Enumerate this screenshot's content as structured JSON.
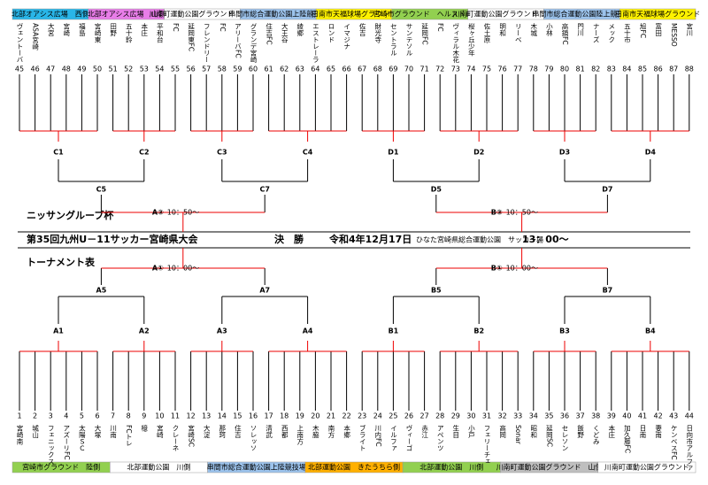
{
  "header": {
    "title": "第35回九州U－11サッカー宮崎県大会",
    "cup": "ニッサングループ杯",
    "subtitle": "トーナメント表",
    "final_label": "決　勝",
    "date": "令和4年12月17日",
    "venue": "ひなた宮崎県総合運動公園　サッカー場",
    "time": "13：00～"
  },
  "top_venues": [
    {
      "label": "北部オアシス広場　西側",
      "color": "#29b6e8"
    },
    {
      "label": "北部オアシス広場　山側",
      "color": "#e87de8"
    },
    {
      "label": "川南町運動公園グラウンド　陸側",
      "color": "#ffffff"
    },
    {
      "label": "串間市総合運動公園上陸競技場",
      "color": "#9cc3ec"
    },
    {
      "label": "日南市天福球場グラウンド",
      "color": "#fff200"
    },
    {
      "label": "宮崎市グラウンド　ヘルストピア側",
      "color": "#92d050"
    },
    {
      "label": "川南町運動公園グラウンド　陸側",
      "color": "#ffffff"
    },
    {
      "label": "串間市総合運動公園陸上競技場",
      "color": "#9cc3ec"
    },
    {
      "label": "日南市天福球場グラウンド",
      "color": "#fff200"
    }
  ],
  "bottom_venues": [
    {
      "label": "宮崎市グラウンド　陸側",
      "color": "#92d050"
    },
    {
      "label": "北部運動公園　川側",
      "color": "#ffffff"
    },
    {
      "label": "串間市総合運動公園上陸競技場",
      "color": "#9cc3ec"
    },
    {
      "label": "北部運動公園　きたうちら側",
      "color": "#ffb000"
    },
    {
      "label": "北部運動公園　川側",
      "color": "#92d050"
    },
    {
      "label": "川南町運動公園グラウンド　山側",
      "color": "#bfbfbf"
    },
    {
      "label": "川南町運動公園グラウンド",
      "color": "#ffffff"
    }
  ],
  "top": {
    "teams": [
      {
        "no": "45",
        "name": "ヴェントーバ"
      },
      {
        "no": "46",
        "name": "ASA宮崎"
      },
      {
        "no": "47",
        "name": "大宮"
      },
      {
        "no": "48",
        "name": "宮崎"
      },
      {
        "no": "49",
        "name": "福島"
      },
      {
        "no": "50",
        "name": "宮崎東"
      },
      {
        "no": "51",
        "name": "田野"
      },
      {
        "no": "52",
        "name": "五十鈴"
      },
      {
        "no": "53",
        "name": "本庄"
      },
      {
        "no": "54",
        "name": "平和台"
      },
      {
        "no": "55",
        "name": "FC"
      },
      {
        "no": "56",
        "name": "延岡東FC"
      },
      {
        "no": "57",
        "name": "フレンドリー"
      },
      {
        "no": "58",
        "name": "FC"
      },
      {
        "no": "59",
        "name": "アリーバFC"
      },
      {
        "no": "60",
        "name": "グランデ宮崎"
      },
      {
        "no": "61",
        "name": "住吉FC"
      },
      {
        "no": "62",
        "name": "大王谷"
      },
      {
        "no": "63",
        "name": "綾郷"
      },
      {
        "no": "64",
        "name": "エストレーラ"
      },
      {
        "no": "65",
        "name": "ロンド"
      },
      {
        "no": "66",
        "name": "イマジナ"
      },
      {
        "no": "67",
        "name": "佐吉"
      },
      {
        "no": "68",
        "name": "財光寺"
      },
      {
        "no": "69",
        "name": "セントラル"
      },
      {
        "no": "70",
        "name": "サンテソル"
      },
      {
        "no": "71",
        "name": "延岡FC"
      },
      {
        "no": "72",
        "name": "FC"
      },
      {
        "no": "73",
        "name": "ヴィラル木花"
      },
      {
        "no": "74",
        "name": "桜ヶ丘少年"
      },
      {
        "no": "75",
        "name": "佐土原"
      },
      {
        "no": "76",
        "name": "明和"
      },
      {
        "no": "77",
        "name": "リーベ"
      },
      {
        "no": "78",
        "name": "木城"
      },
      {
        "no": "79",
        "name": "小林"
      },
      {
        "no": "80",
        "name": "高鍋FC"
      },
      {
        "no": "81",
        "name": "門川"
      },
      {
        "no": "82",
        "name": "ナーズ"
      },
      {
        "no": "83",
        "name": "メック"
      },
      {
        "no": "84",
        "name": "五十市"
      },
      {
        "no": "85",
        "name": "旭FC"
      },
      {
        "no": "86",
        "name": "富田"
      },
      {
        "no": "87",
        "name": "MESSO"
      },
      {
        "no": "88",
        "name": "宮川"
      }
    ],
    "groups": [
      "C1",
      "C2",
      "C3",
      "C4",
      "D1",
      "D2",
      "D3",
      "D4"
    ],
    "pairs": [
      "C5",
      "C7",
      "D5",
      "D7"
    ],
    "semis": [
      {
        "label": "A②",
        "time": "10：50～"
      },
      {
        "label": "B②",
        "time": "10：50～"
      }
    ]
  },
  "bottom": {
    "teams": [
      {
        "no": "1",
        "name": "宮崎南"
      },
      {
        "no": "2",
        "name": "城山"
      },
      {
        "no": "3",
        "name": "フェニックス"
      },
      {
        "no": "4",
        "name": "アズーリFC"
      },
      {
        "no": "5",
        "name": "太陽ＳＣ"
      },
      {
        "no": "6",
        "name": "大塚"
      },
      {
        "no": "7",
        "name": "川南"
      },
      {
        "no": "8",
        "name": "FCトレ"
      },
      {
        "no": "9",
        "name": "檍"
      },
      {
        "no": "10",
        "name": "宮崎"
      },
      {
        "no": "11",
        "name": "クレーネ"
      },
      {
        "no": "12",
        "name": "宮崎SC"
      },
      {
        "no": "13",
        "name": "大淀"
      },
      {
        "no": "14",
        "name": "那珂"
      },
      {
        "no": "15",
        "name": "住吉"
      },
      {
        "no": "16",
        "name": "ソレッソ"
      },
      {
        "no": "17",
        "name": "清武"
      },
      {
        "no": "18",
        "name": "西都"
      },
      {
        "no": "19",
        "name": "上南方"
      },
      {
        "no": "20",
        "name": "木脇"
      },
      {
        "no": "21",
        "name": "南方"
      },
      {
        "no": "22",
        "name": "本郷"
      },
      {
        "no": "23",
        "name": "ブライト"
      },
      {
        "no": "24",
        "name": "川内FC"
      },
      {
        "no": "25",
        "name": "イルファ"
      },
      {
        "no": "26",
        "name": "ヴィーゴ"
      },
      {
        "no": "27",
        "name": "赤江"
      },
      {
        "no": "28",
        "name": "アペンツ"
      },
      {
        "no": "29",
        "name": "生目"
      },
      {
        "no": "30",
        "name": "小戸"
      },
      {
        "no": "31",
        "name": "フェリーチェ"
      },
      {
        "no": "32",
        "name": "高岡"
      },
      {
        "no": "33",
        "name": "Sonar"
      },
      {
        "no": "34",
        "name": "昭和"
      },
      {
        "no": "35",
        "name": "延岡SC"
      },
      {
        "no": "36",
        "name": "セレソン"
      },
      {
        "no": "37",
        "name": "飯野"
      },
      {
        "no": "38",
        "name": "くどみ"
      },
      {
        "no": "39",
        "name": "本庄"
      },
      {
        "no": "40",
        "name": "加久藤FC"
      },
      {
        "no": "41",
        "name": "日南"
      },
      {
        "no": "42",
        "name": "妻南"
      },
      {
        "no": "43",
        "name": "ケンベスFC"
      },
      {
        "no": "44",
        "name": "日向市アルファ"
      }
    ],
    "groups": [
      "A1",
      "A2",
      "A3",
      "A4",
      "B1",
      "B2",
      "B3",
      "B4"
    ],
    "pairs": [
      "A5",
      "A7",
      "B5",
      "B7"
    ],
    "semis": [
      {
        "label": "A①",
        "time": "10：00～"
      },
      {
        "label": "B①",
        "time": "10：00～"
      }
    ]
  }
}
